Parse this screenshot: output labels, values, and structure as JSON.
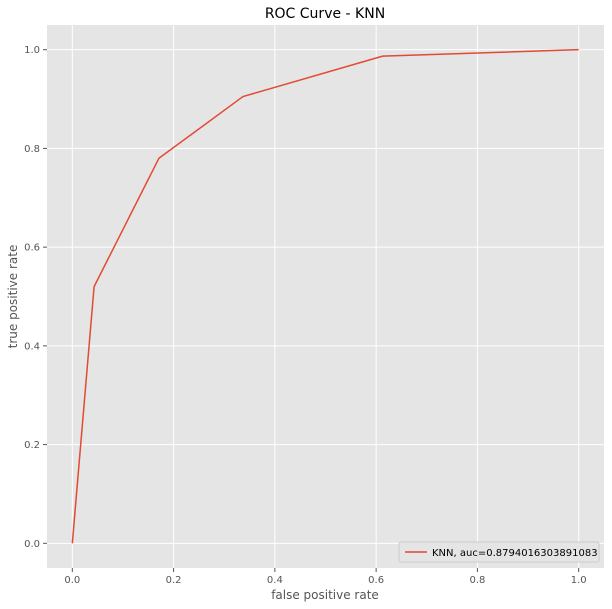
{
  "chart_data": {
    "type": "line",
    "title": "ROC Curve - KNN",
    "xlabel": "false positive rate",
    "ylabel": "true positive rate",
    "xlim": [
      -0.05,
      1.05
    ],
    "ylim": [
      -0.05,
      1.05
    ],
    "xticks": [
      0.0,
      0.2,
      0.4,
      0.6,
      0.8,
      1.0
    ],
    "yticks": [
      0.0,
      0.2,
      0.4,
      0.6,
      0.8,
      1.0
    ],
    "xtick_labels": [
      "0.0",
      "0.2",
      "0.4",
      "0.6",
      "0.8",
      "1.0"
    ],
    "ytick_labels": [
      "0.0",
      "0.2",
      "0.4",
      "0.6",
      "0.8",
      "1.0"
    ],
    "grid": true,
    "legend_position": "lower-right",
    "series": [
      {
        "name": "KNN, auc=0.8794016303891083",
        "color": "#E24A33",
        "x": [
          0.0,
          0.043,
          0.171,
          0.337,
          0.613,
          1.0
        ],
        "y": [
          0.0,
          0.52,
          0.78,
          0.905,
          0.987,
          1.0
        ]
      }
    ]
  },
  "colors": {
    "plot_background": "#E5E5E5",
    "grid": "#FFFFFF",
    "text": "#555555"
  }
}
